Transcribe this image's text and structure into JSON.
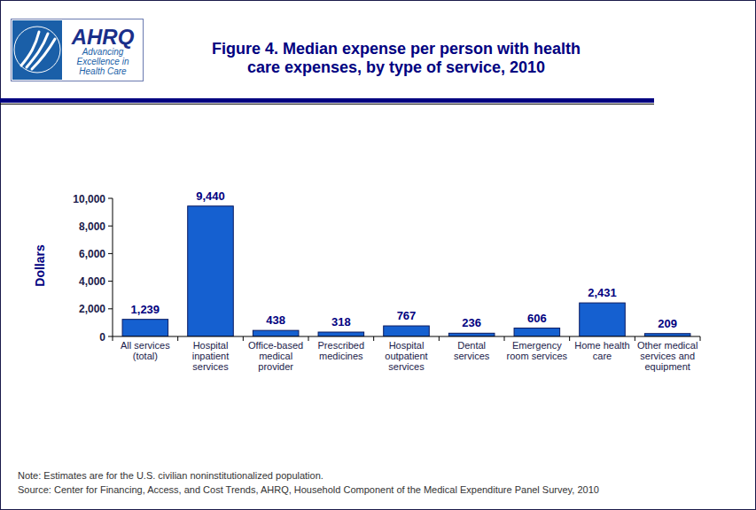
{
  "chart_data": {
    "type": "bar",
    "title": "Figure 4. Median expense per person with health care expenses, by type of service, 2010",
    "y_label": "Dollars",
    "categories": [
      "All services (total)",
      "Hospital inpatient services",
      "Office-based medical provider",
      "Prescribed medicines",
      "Hospital outpatient services",
      "Dental services",
      "Emergency room services",
      "Home health care",
      "Other medical services and equipment"
    ],
    "values": [
      1239,
      9440,
      438,
      318,
      767,
      236,
      606,
      2431,
      209
    ],
    "value_labels": [
      "1,239",
      "9,440",
      "438",
      "318",
      "767",
      "236",
      "606",
      "2,431",
      "209"
    ],
    "color": "#1560d0",
    "ylim": [
      0,
      10000
    ],
    "yticks": [
      0,
      {
        "value": 2000,
        "label": "2,000"
      },
      {
        "value": 4000,
        "label": "4,000"
      },
      {
        "value": 6000,
        "label": "6,000"
      },
      {
        "value": 8000,
        "label": "8,000"
      },
      {
        "value": 10000,
        "label": "10,000"
      }
    ],
    "grid": false,
    "data_labels": true,
    "annotations": [
      "Note: Estimates are for the U.S. civilian noninstitutionalized population.",
      "Source: Center for Financing, Access, and Cost Trends, AHRQ, Household Component of the Medical Expenditure Panel Survey,  2010"
    ]
  },
  "logo": {
    "text": "AHRQ",
    "tagline": "Advancing Excellence in Health Care"
  }
}
